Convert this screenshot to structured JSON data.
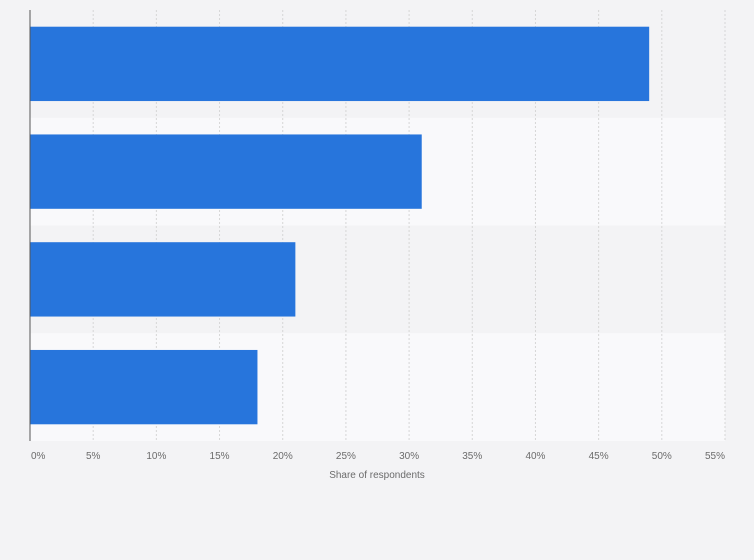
{
  "chart_data": {
    "type": "bar",
    "orientation": "horizontal",
    "categories": [
      "",
      "",
      "",
      ""
    ],
    "values": [
      49,
      31,
      21,
      18
    ],
    "xlabel": "Share of respondents",
    "ylabel": "",
    "xlim": [
      0,
      55
    ],
    "xticks": [
      0,
      5,
      10,
      15,
      20,
      25,
      30,
      35,
      40,
      45,
      50,
      55
    ],
    "xtick_labels": [
      "0%",
      "5%",
      "10%",
      "15%",
      "20%",
      "25%",
      "30%",
      "35%",
      "40%",
      "45%",
      "50%",
      "55%"
    ],
    "grid": "vertical dashed",
    "legend": "none",
    "bar_color": "#2775dc",
    "row_band_colors": [
      "#f3f3f5",
      "#f9f9fb"
    ]
  }
}
